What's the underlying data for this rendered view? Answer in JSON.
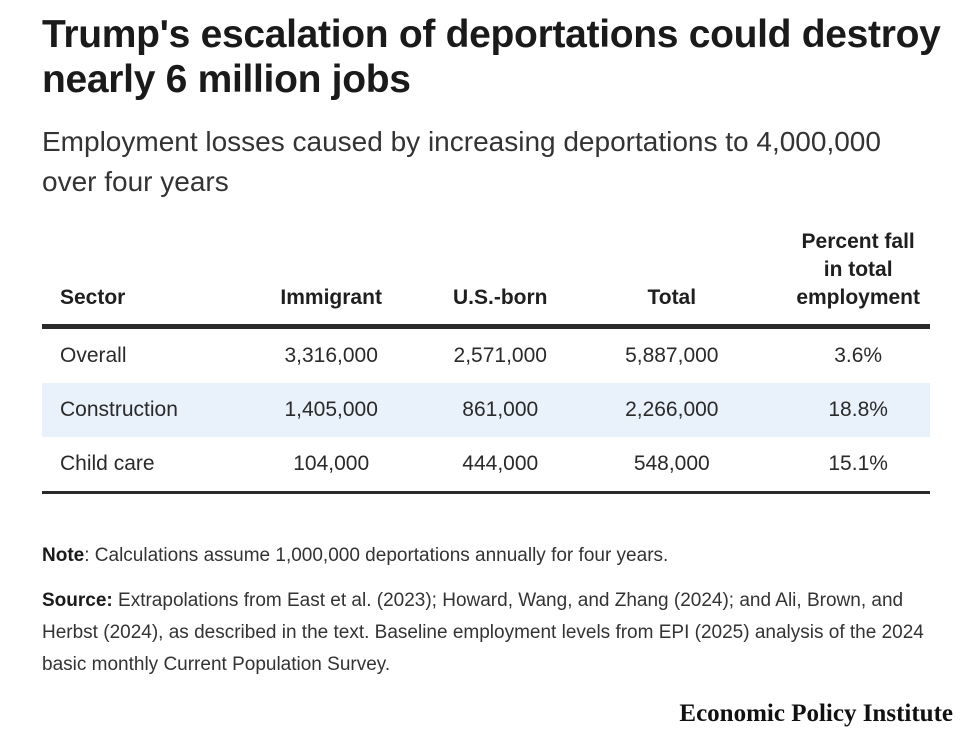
{
  "title": "Trump's escalation of deportations could destroy nearly 6 million jobs",
  "subtitle": "Employment losses caused by increasing deportations to 4,000,000 over four years",
  "chart_data": {
    "type": "table",
    "columns": [
      "Sector",
      "Immigrant",
      "U.S.-born",
      "Total",
      "Percent fall in total employment"
    ],
    "rows": [
      {
        "sector": "Overall",
        "immigrant": "3,316,000",
        "us_born": "2,571,000",
        "total": "5,887,000",
        "percent_fall": "3.6%"
      },
      {
        "sector": "Construction",
        "immigrant": "1,405,000",
        "us_born": "861,000",
        "total": "2,266,000",
        "percent_fall": "18.8%"
      },
      {
        "sector": "Child care",
        "immigrant": "104,000",
        "us_born": "444,000",
        "total": "548,000",
        "percent_fall": "15.1%"
      }
    ],
    "values": [
      [
        3316000,
        2571000,
        5887000,
        3.6
      ],
      [
        1405000,
        861000,
        2266000,
        18.8
      ],
      [
        104000,
        444000,
        548000,
        15.1
      ]
    ],
    "highlight_row_color": "#e9f1fa"
  },
  "notes": {
    "note_label": "Note",
    "note_text": ": Calculations assume 1,000,000 deportations annually for four years.",
    "source_label": "Source:",
    "source_text": " Extrapolations from East et al. (2023); Howard, Wang, and Zhang (2024); and Ali, Brown, and Herbst (2024), as described in the text. Baseline employment levels from EPI (2025) analysis of the 2024 basic monthly Current Population Survey."
  },
  "logo": "Economic Policy Institute"
}
